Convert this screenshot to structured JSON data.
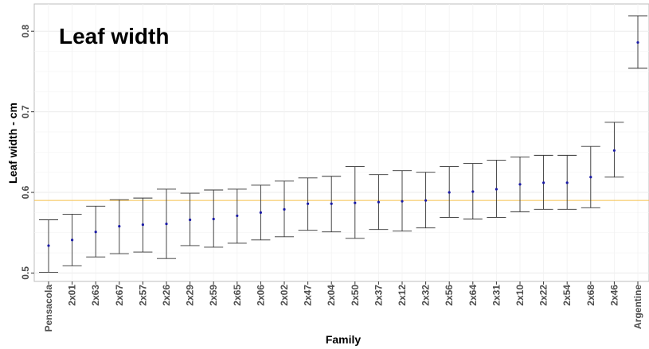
{
  "chart_data": {
    "type": "errorbar",
    "title": "Leaf width",
    "xlabel": "Family",
    "ylabel": "Leaf width - cm",
    "ylim": [
      0.495,
      0.84
    ],
    "yticks": [
      0.5,
      0.6,
      0.7,
      0.8
    ],
    "ytick_labels": [
      "0.5",
      "0.6",
      "0.7",
      "0.8"
    ],
    "reference_line": {
      "value": 0.59,
      "color": "#f5c04a"
    },
    "point_color": "#1a1aa6",
    "grid": true,
    "categories": [
      "Pensacola",
      "2x01",
      "2x63",
      "2x67",
      "2x57",
      "2x26",
      "2x29",
      "2x59",
      "2x65",
      "2x06",
      "2x02",
      "2x47",
      "2x04",
      "2x50",
      "2x37",
      "2x12",
      "2x32",
      "2x56",
      "2x64",
      "2x31",
      "2x10",
      "2x22",
      "2x54",
      "2x68",
      "2x46",
      "Argentine"
    ],
    "mean": [
      0.534,
      0.541,
      0.551,
      0.558,
      0.56,
      0.561,
      0.566,
      0.567,
      0.571,
      0.575,
      0.579,
      0.586,
      0.586,
      0.587,
      0.588,
      0.589,
      0.59,
      0.6,
      0.601,
      0.604,
      0.61,
      0.612,
      0.612,
      0.619,
      0.652,
      0.786
    ],
    "lower": [
      0.501,
      0.509,
      0.52,
      0.524,
      0.526,
      0.518,
      0.534,
      0.532,
      0.537,
      0.541,
      0.545,
      0.553,
      0.551,
      0.543,
      0.554,
      0.552,
      0.556,
      0.569,
      0.567,
      0.569,
      0.576,
      0.579,
      0.579,
      0.581,
      0.619,
      0.754
    ],
    "upper": [
      0.566,
      0.573,
      0.583,
      0.591,
      0.593,
      0.604,
      0.599,
      0.603,
      0.604,
      0.609,
      0.614,
      0.618,
      0.62,
      0.632,
      0.622,
      0.627,
      0.625,
      0.632,
      0.636,
      0.64,
      0.644,
      0.646,
      0.646,
      0.657,
      0.687,
      0.819
    ]
  }
}
